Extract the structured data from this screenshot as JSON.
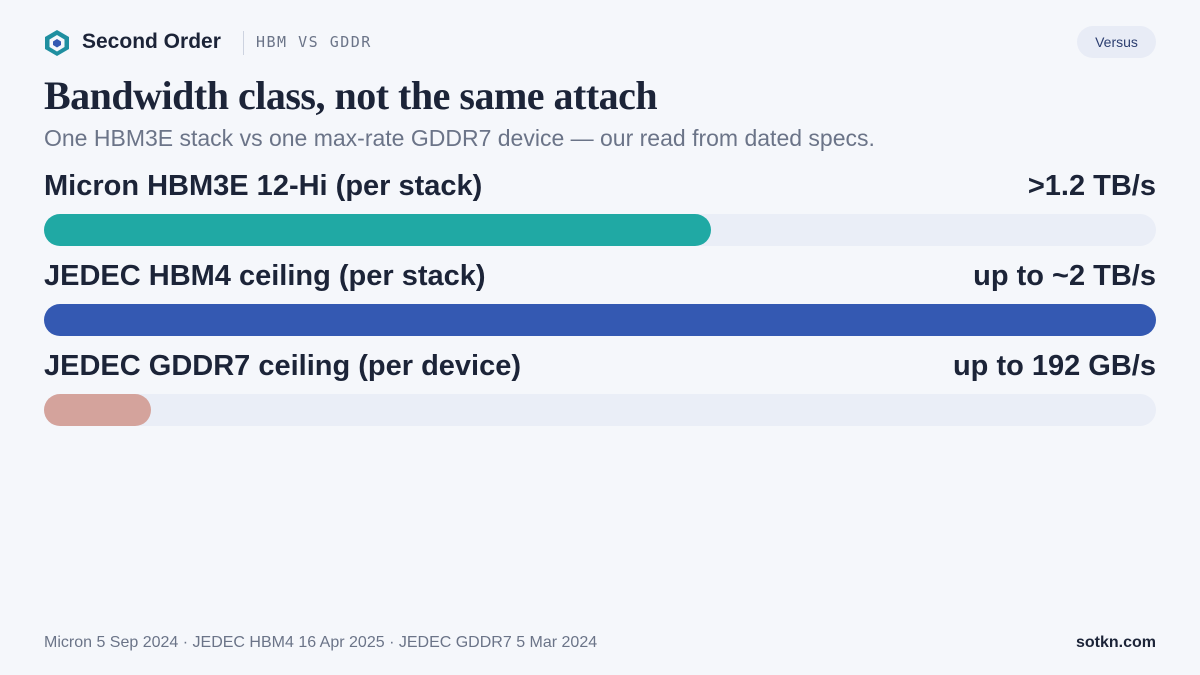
{
  "header": {
    "brand": "Second Order",
    "tag": "HBM VS GDDR",
    "badge": "Versus"
  },
  "chart_data": {
    "type": "bar",
    "orientation": "horizontal",
    "title": "Bandwidth class, not the same attach",
    "subtitle": "One HBM3E stack vs one max-rate GDDR7 device — our read from dated specs.",
    "categories": [
      "Micron HBM3E 12-Hi (per stack)",
      "JEDEC HBM4 ceiling (per stack)",
      "JEDEC GDDR7 ceiling (per device)"
    ],
    "values": [
      1.2,
      2,
      0.192
    ],
    "value_labels": [
      ">1.2 TB/s",
      "up to ~2 TB/s",
      "up to 192 GB/s"
    ],
    "colors": [
      "#20a9a4",
      "#3459b2",
      "#d4a39c"
    ],
    "track_color": "#eaeef7",
    "xlim": [
      0,
      2
    ]
  },
  "footer": {
    "sources": "Micron 5 Sep 2024 · JEDEC HBM4 16 Apr 2025 · JEDEC GDDR7 5 Mar 2024",
    "site": "sotkn.com"
  }
}
